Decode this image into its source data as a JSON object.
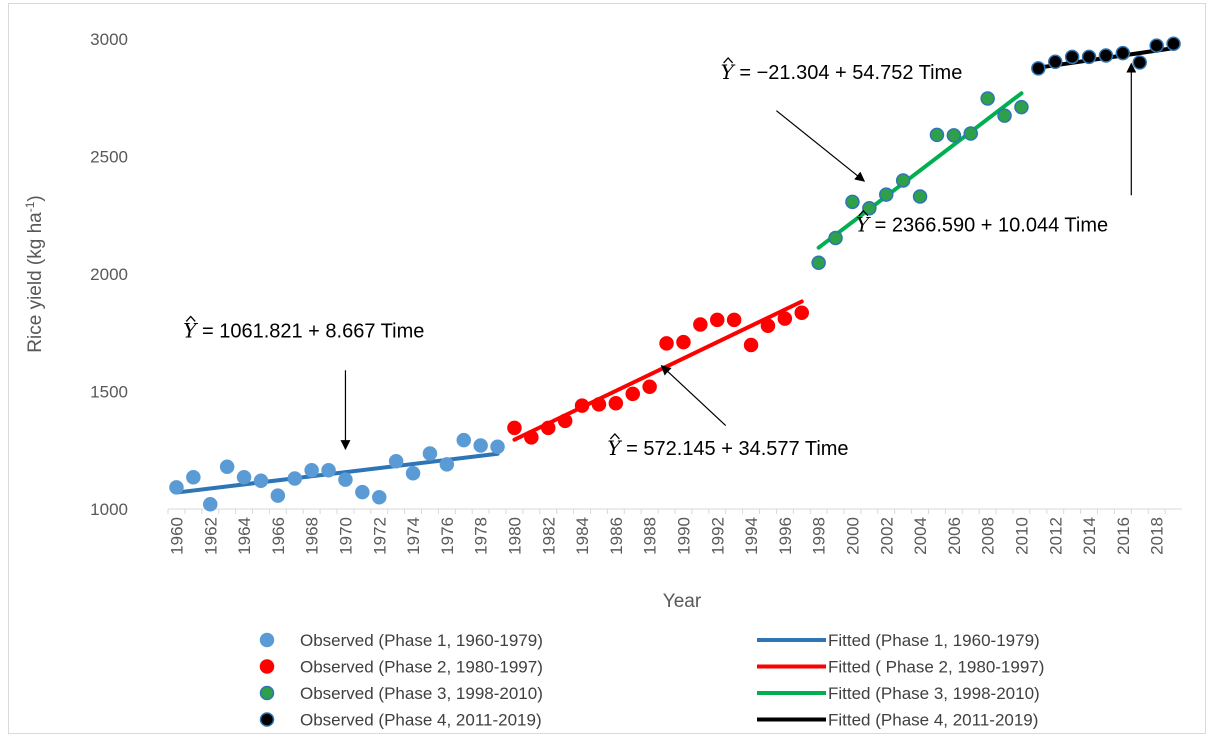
{
  "chart_data": {
    "type": "scatter",
    "xlabel": "Year",
    "ylabel": "Rice yield (kg ha",
    "ylabel_sup": "-1",
    "ylabel_close": ")",
    "xlim": [
      1960,
      2019
    ],
    "ylim": [
      1000,
      3000
    ],
    "y_ticks": [
      1000,
      1500,
      2000,
      2500,
      3000
    ],
    "x_ticks": [
      "1960",
      "1962",
      "1964",
      "1966",
      "1968",
      "1970",
      "1972",
      "1974",
      "1976",
      "1978",
      "1980",
      "1982",
      "1984",
      "1986",
      "1988",
      "1990",
      "1992",
      "1994",
      "1996",
      "1998",
      "2000",
      "2002",
      "2004",
      "2006",
      "2008",
      "2010",
      "2012",
      "2014",
      "2016",
      "2018"
    ],
    "grid": false,
    "legend_position": "bottom",
    "series": [
      {
        "name": "Observed (Phase 1, 1960-1979)",
        "kind": "points",
        "color": "#5b9bd5",
        "edge": "#5b9bd5",
        "x": [
          1960,
          1961,
          1962,
          1963,
          1964,
          1965,
          1966,
          1967,
          1968,
          1969,
          1970,
          1971,
          1972,
          1973,
          1974,
          1975,
          1976,
          1977,
          1978,
          1979
        ],
        "y": [
          1092,
          1135,
          1020,
          1180,
          1135,
          1120,
          1057,
          1130,
          1165,
          1165,
          1125,
          1072,
          1050,
          1203,
          1152,
          1236,
          1190,
          1293,
          1270,
          1265
        ]
      },
      {
        "name": "Observed (Phase 2, 1980-1997)",
        "kind": "points",
        "color": "#ff0000",
        "edge": "#ff0000",
        "x": [
          1980,
          1981,
          1982,
          1983,
          1984,
          1985,
          1986,
          1987,
          1988,
          1989,
          1990,
          1991,
          1992,
          1993,
          1994,
          1995,
          1996,
          1997
        ],
        "y": [
          1345,
          1305,
          1345,
          1375,
          1440,
          1445,
          1450,
          1490,
          1520,
          1705,
          1710,
          1785,
          1805,
          1805,
          1698,
          1780,
          1810,
          1835
        ]
      },
      {
        "name": "Observed (Phase 3, 1998-2010)",
        "kind": "points",
        "color": "#2ea04a",
        "edge": "#2e75b6",
        "x": [
          1998,
          1999,
          2000,
          2001,
          2002,
          2003,
          2004,
          2005,
          2006,
          2007,
          2008,
          2009,
          2010
        ],
        "y": [
          2048,
          2153,
          2307,
          2280,
          2338,
          2398,
          2330,
          2592,
          2590,
          2598,
          2747,
          2674,
          2710
        ]
      },
      {
        "name": "Observed (Phase 4, 2011-2019)",
        "kind": "points",
        "color": "#000000",
        "edge": "#2e75b6",
        "x": [
          2011,
          2012,
          2013,
          2014,
          2015,
          2016,
          2017,
          2018,
          2019
        ],
        "y": [
          2875,
          2903,
          2924,
          2924,
          2930,
          2940,
          2900,
          2972,
          2980
        ]
      },
      {
        "name": "Fitted (Phase 1, 1960-1979)",
        "kind": "line",
        "color": "#2e75b6",
        "x": [
          1960,
          1979
        ],
        "y": [
          1070,
          1235
        ]
      },
      {
        "name": "Fitted ( Phase 2, 1980-1997)",
        "kind": "line",
        "color": "#ff0000",
        "x": [
          1980,
          1997
        ],
        "y": [
          1295,
          1883
        ]
      },
      {
        "name": "Fitted (Phase 3, 1998-2010)",
        "kind": "line",
        "color": "#00b050",
        "x": [
          1998,
          2010
        ],
        "y": [
          2112,
          2769
        ]
      },
      {
        "name": "Fitted  (Phase 4, 2011-2019)",
        "kind": "line",
        "color": "#000000",
        "x": [
          2011,
          2019
        ],
        "y": [
          2878,
          2961
        ]
      }
    ],
    "annotations": [
      {
        "id": "eq1",
        "hat": "Y",
        "text": " = 1061.821 + 8.667 Time",
        "pos": [
          1960.4,
          1730
        ],
        "arrow_from": [
          1970,
          1590
        ],
        "arrow_to": [
          1970,
          1255
        ]
      },
      {
        "id": "eq2",
        "hat": "Y",
        "text": " = 572.145 + 34.577 Time",
        "pos": [
          1985.5,
          1230
        ],
        "arrow_from": [
          1992.5,
          1355
        ],
        "arrow_to": [
          1988.7,
          1610
        ]
      },
      {
        "id": "eq3",
        "hat": "Y",
        "text": " = −21.304 + 54.752 Time",
        "pos": [
          1992.2,
          2830
        ],
        "arrow_from": [
          1995.5,
          2695
        ],
        "arrow_to": [
          2000.7,
          2395
        ]
      },
      {
        "id": "eq4",
        "hat": "Y",
        "text": " = 2366.590 + 10.044 Time",
        "pos": [
          2000.2,
          2180
        ],
        "arrow_from": [
          2016.5,
          2335
        ],
        "arrow_to": [
          2016.5,
          2895
        ]
      }
    ]
  }
}
